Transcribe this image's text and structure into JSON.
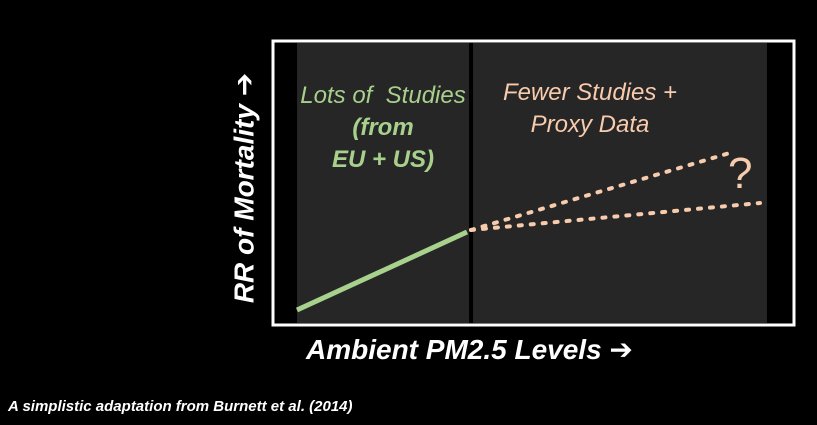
{
  "diagram": {
    "ylabel": "RR of Mortality ➔",
    "xlabel": "Ambient PM2.5 Levels ➔",
    "caption": "A simplistic adaptation from Burnett et al. (2014)",
    "left_region": {
      "line1": "Lots of  Studies",
      "line2": "(from",
      "line3": "EU + US)"
    },
    "right_region": {
      "line1": "Fewer Studies +",
      "line2": "Proxy Data"
    },
    "question_mark": "?",
    "colors": {
      "background": "#000000",
      "panel_fill": "#262626",
      "frame": "#ffffff",
      "divider": "#000000",
      "well_studied_line": "#a9d18e",
      "uncertain_lines": "#f8cbad"
    }
  }
}
